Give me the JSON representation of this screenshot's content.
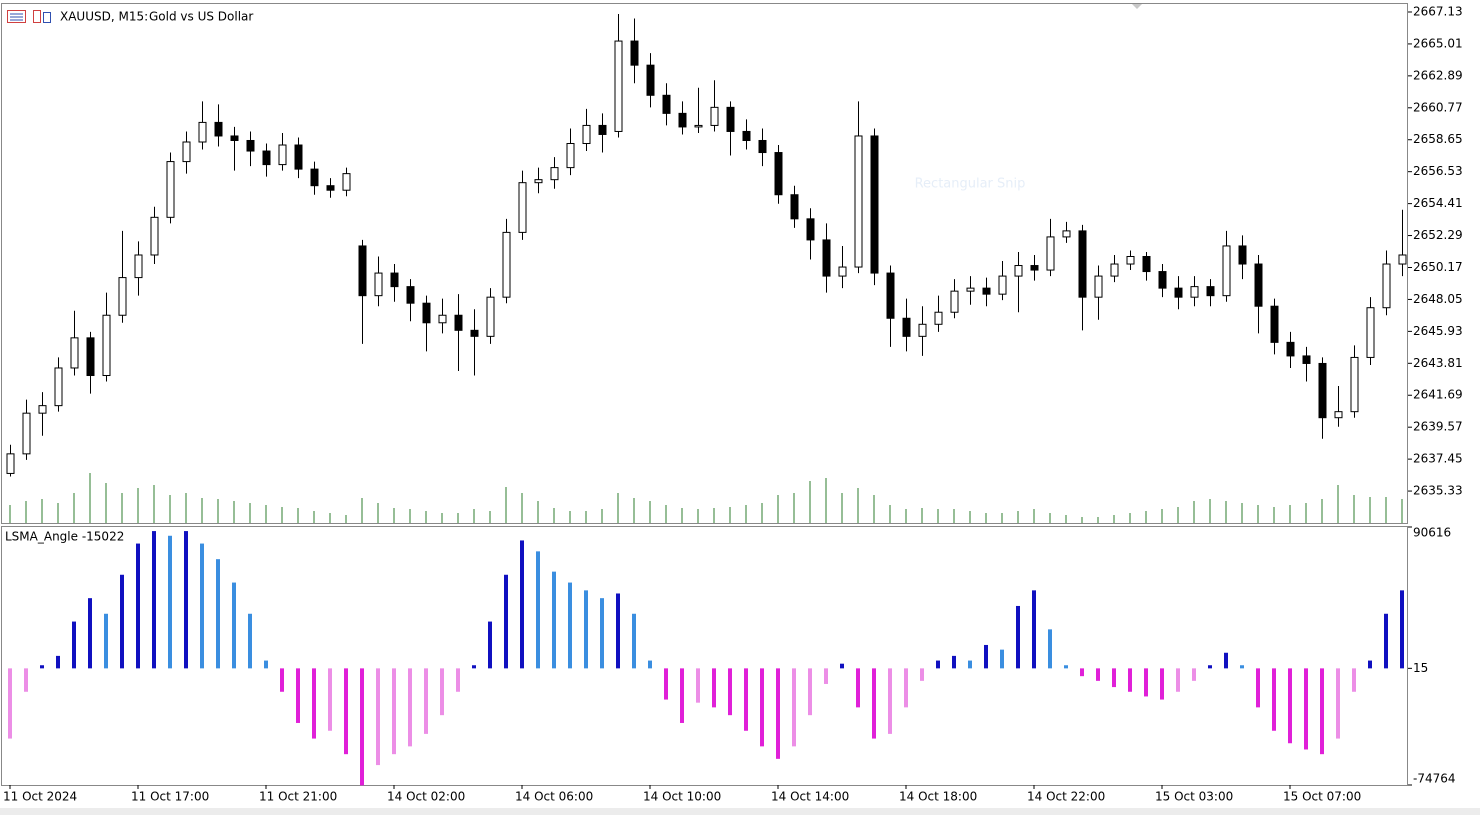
{
  "chart_data": [
    {
      "type": "candlestick",
      "symbol": "XAUUSD, M15:",
      "title": "Gold vs US Dollar",
      "overlay_text": "Rectangular Snip",
      "up_color": "#ffffff",
      "down_color": "#000000",
      "wick_color": "#000000",
      "volume_color": "#2e7d2e",
      "ylim": [
        2633.21,
        2667.66
      ],
      "yticks": [
        2667.13,
        2665.01,
        2662.89,
        2660.77,
        2658.65,
        2656.53,
        2654.41,
        2652.29,
        2650.17,
        2648.05,
        2645.93,
        2643.81,
        2641.69,
        2639.57,
        2637.45,
        2635.33
      ],
      "open": [
        2636.5,
        2637.8,
        2640.5,
        2641.0,
        2643.5,
        2645.5,
        2643.0,
        2647.0,
        2649.5,
        2651.0,
        2653.5,
        2657.2,
        2658.5,
        2659.8,
        2658.9,
        2658.6,
        2657.9,
        2657.0,
        2658.3,
        2656.7,
        2655.6,
        2655.3,
        2651.6,
        2648.3,
        2649.8,
        2648.9,
        2647.8,
        2646.5,
        2647.0,
        2646.0,
        2645.6,
        2648.2,
        2652.5,
        2655.8,
        2656.0,
        2656.8,
        2658.4,
        2659.6,
        2659.2,
        2665.2,
        2663.6,
        2661.6,
        2660.4,
        2659.5,
        2659.6,
        2660.8,
        2659.2,
        2658.6,
        2657.8,
        2655.0,
        2653.4,
        2652.0,
        2649.6,
        2650.2,
        2658.9,
        2649.8,
        2646.8,
        2645.6,
        2646.4,
        2647.2,
        2648.6,
        2648.8,
        2648.4,
        2649.6,
        2650.3,
        2650.0,
        2652.2,
        2652.6,
        2648.2,
        2649.6,
        2650.4,
        2650.9,
        2649.9,
        2648.8,
        2648.2,
        2648.9,
        2648.3,
        2651.6,
        2650.4,
        2647.6,
        2645.2,
        2644.3,
        2643.8,
        2640.2,
        2640.6,
        2644.2,
        2647.5,
        2650.4
      ],
      "high": [
        2638.4,
        2641.4,
        2641.9,
        2644.2,
        2647.3,
        2645.9,
        2648.5,
        2652.6,
        2651.9,
        2654.2,
        2657.8,
        2659.2,
        2661.2,
        2661.0,
        2659.5,
        2659.2,
        2658.4,
        2659.1,
        2658.8,
        2657.2,
        2656.1,
        2656.8,
        2652.0,
        2650.9,
        2650.4,
        2649.4,
        2648.3,
        2648.1,
        2648.4,
        2647.4,
        2648.8,
        2653.4,
        2656.6,
        2656.8,
        2657.5,
        2659.4,
        2660.7,
        2660.4,
        2667.0,
        2666.7,
        2664.4,
        2662.4,
        2661.2,
        2662.1,
        2662.6,
        2661.2,
        2660.0,
        2659.4,
        2658.3,
        2655.6,
        2654.1,
        2653.1,
        2651.6,
        2661.2,
        2659.4,
        2650.3,
        2648.1,
        2647.6,
        2648.3,
        2649.4,
        2649.6,
        2649.5,
        2650.6,
        2651.2,
        2651.0,
        2653.4,
        2653.2,
        2653.0,
        2650.3,
        2651.0,
        2651.3,
        2651.2,
        2650.4,
        2649.6,
        2649.6,
        2649.4,
        2652.6,
        2652.3,
        2651.0,
        2648.1,
        2645.9,
        2644.9,
        2644.2,
        2642.3,
        2645.0,
        2648.2,
        2651.3,
        2654.0
      ],
      "low": [
        2636.3,
        2637.4,
        2639.0,
        2640.6,
        2643.0,
        2641.8,
        2642.6,
        2646.5,
        2648.3,
        2650.4,
        2653.1,
        2656.4,
        2658.0,
        2658.2,
        2656.6,
        2656.9,
        2656.2,
        2656.6,
        2656.1,
        2655.0,
        2654.8,
        2654.9,
        2645.1,
        2647.6,
        2647.9,
        2646.6,
        2644.6,
        2645.8,
        2643.3,
        2643.0,
        2645.1,
        2647.8,
        2652.0,
        2655.1,
        2655.4,
        2656.3,
        2657.9,
        2657.8,
        2658.8,
        2662.4,
        2660.8,
        2659.6,
        2659.0,
        2659.1,
        2659.2,
        2657.6,
        2658.0,
        2656.9,
        2654.4,
        2652.8,
        2650.7,
        2648.5,
        2648.8,
        2649.8,
        2649.0,
        2644.9,
        2644.6,
        2644.3,
        2645.9,
        2646.8,
        2647.7,
        2647.6,
        2648.0,
        2647.2,
        2649.3,
        2649.6,
        2651.8,
        2646.0,
        2646.7,
        2649.2,
        2650.0,
        2649.3,
        2648.2,
        2647.4,
        2647.6,
        2647.6,
        2647.9,
        2649.4,
        2645.8,
        2644.4,
        2643.5,
        2642.6,
        2638.8,
        2639.6,
        2640.2,
        2643.7,
        2647.0,
        2649.6
      ],
      "close": [
        2637.8,
        2640.5,
        2641.0,
        2643.5,
        2645.5,
        2643.0,
        2647.0,
        2649.5,
        2651.0,
        2653.5,
        2657.2,
        2658.5,
        2659.8,
        2658.9,
        2658.6,
        2657.9,
        2657.0,
        2658.3,
        2656.7,
        2655.6,
        2655.3,
        2656.4,
        2648.3,
        2649.8,
        2648.9,
        2647.8,
        2646.5,
        2647.0,
        2646.0,
        2645.6,
        2648.2,
        2652.5,
        2655.8,
        2656.0,
        2656.8,
        2658.4,
        2659.6,
        2659.0,
        2665.2,
        2663.6,
        2661.6,
        2660.4,
        2659.5,
        2659.6,
        2660.8,
        2659.2,
        2658.6,
        2657.8,
        2655.0,
        2653.4,
        2652.0,
        2649.6,
        2650.2,
        2658.9,
        2649.8,
        2646.8,
        2645.6,
        2646.4,
        2647.2,
        2648.6,
        2648.8,
        2648.4,
        2649.6,
        2650.3,
        2650.0,
        2652.2,
        2652.6,
        2648.2,
        2649.6,
        2650.4,
        2650.9,
        2649.9,
        2648.8,
        2648.2,
        2648.9,
        2648.3,
        2651.6,
        2650.4,
        2647.6,
        2645.2,
        2644.3,
        2643.8,
        2640.2,
        2640.6,
        2644.2,
        2647.5,
        2650.4,
        2651.0
      ],
      "volume": [
        18,
        22,
        24,
        20,
        30,
        50,
        40,
        30,
        35,
        38,
        28,
        30,
        25,
        24,
        22,
        20,
        18,
        16,
        15,
        12,
        10,
        8,
        25,
        20,
        15,
        14,
        12,
        10,
        10,
        14,
        12,
        36,
        30,
        22,
        15,
        12,
        12,
        14,
        30,
        25,
        22,
        18,
        15,
        14,
        15,
        16,
        18,
        20,
        28,
        30,
        42,
        45,
        30,
        35,
        28,
        18,
        14,
        15,
        14,
        14,
        12,
        10,
        10,
        12,
        14,
        10,
        8,
        6,
        6,
        8,
        10,
        12,
        14,
        16,
        22,
        24,
        22,
        20,
        18,
        16,
        18,
        20,
        24,
        38,
        28,
        26,
        26,
        24
      ]
    },
    {
      "type": "bar",
      "title": "LSMA_Angle -15022",
      "colors": {
        "up_rising": "#1010c0",
        "up_falling": "#3a8ee0",
        "down_falling": "#e020d8",
        "down_rising": "#ec8ee6"
      },
      "ylim": [
        -74764,
        90616
      ],
      "yticks": [
        90616,
        15,
        -74764
      ],
      "categories": [
        "11 Oct 2024",
        null,
        null,
        null,
        null,
        null,
        null,
        null,
        "11 Oct 17:00",
        null,
        null,
        null,
        null,
        null,
        null,
        null,
        "11 Oct 21:00",
        null,
        null,
        null,
        null,
        null,
        null,
        null,
        "14 Oct 02:00",
        null,
        null,
        null,
        null,
        null,
        null,
        null,
        "14 Oct 06:00",
        null,
        null,
        null,
        null,
        null,
        null,
        null,
        "14 Oct 10:00",
        null,
        null,
        null,
        null,
        null,
        null,
        null,
        "14 Oct 14:00",
        null,
        null,
        null,
        null,
        null,
        null,
        null,
        "14 Oct 18:00",
        null,
        null,
        null,
        null,
        null,
        null,
        null,
        "14 Oct 22:00",
        null,
        null,
        null,
        null,
        null,
        null,
        null,
        "15 Oct 03:00",
        null,
        null,
        null,
        null,
        null,
        null,
        null,
        "15 Oct 07:00",
        null,
        null,
        null,
        null,
        null,
        null,
        null
      ],
      "values": [
        -45000,
        -15000,
        2000,
        8000,
        30000,
        45000,
        35000,
        60000,
        80000,
        88000,
        85000,
        88000,
        80000,
        70000,
        55000,
        35000,
        5000,
        -15000,
        -35000,
        -45000,
        -40000,
        -55000,
        -75000,
        -62000,
        -55000,
        -50000,
        -42000,
        -30000,
        -15000,
        2000,
        30000,
        60000,
        82000,
        75000,
        62000,
        55000,
        50000,
        45000,
        48000,
        35000,
        5000,
        -20000,
        -35000,
        -22000,
        -25000,
        -30000,
        -40000,
        -50000,
        -58000,
        -50000,
        -30000,
        -10000,
        3000,
        -25000,
        -45000,
        -42000,
        -25000,
        -8000,
        5000,
        8000,
        5000,
        15000,
        12000,
        40000,
        50000,
        25000,
        2000,
        -5000,
        -8000,
        -12000,
        -15000,
        -18000,
        -20000,
        -15000,
        -8000,
        2000,
        10000,
        2000,
        -25000,
        -40000,
        -48000,
        -52000,
        -55000,
        -45000,
        -15000,
        5000,
        35000,
        50000
      ]
    }
  ]
}
